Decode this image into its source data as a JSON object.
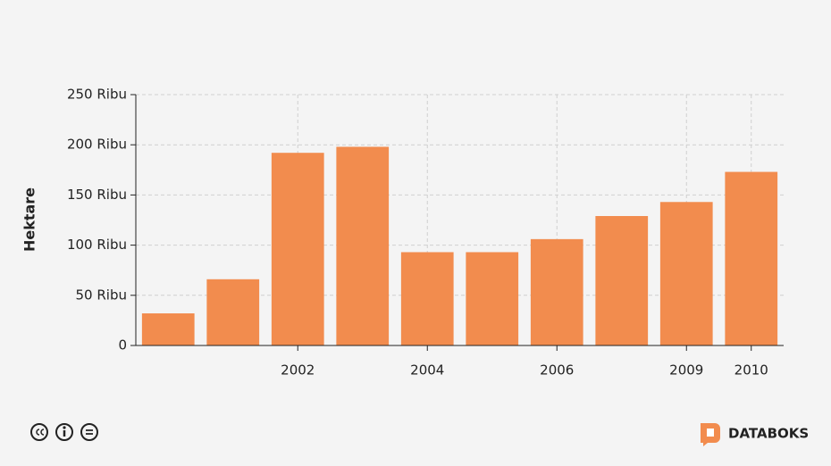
{
  "chart_data": {
    "type": "bar",
    "y_label": "Hektare",
    "categories": [
      null,
      null,
      "2002",
      null,
      "2004",
      null,
      "2006",
      null,
      "2009",
      "2010"
    ],
    "values": [
      32,
      66,
      192,
      198,
      93,
      93,
      106,
      129,
      143,
      173
    ],
    "color": "#f28c4e",
    "ylim": [
      0,
      250
    ],
    "yticks": [
      0,
      {
        "value": 50,
        "label": "50 Ribu"
      },
      {
        "value": 100,
        "label": "100 Ribu"
      },
      {
        "value": 150,
        "label": "150 Ribu"
      },
      {
        "value": 200,
        "label": "200 Ribu"
      },
      {
        "value": 250,
        "label": "250 Ribu"
      }
    ],
    "grid": true
  },
  "footer": {
    "brand": "DATABOKS"
  }
}
